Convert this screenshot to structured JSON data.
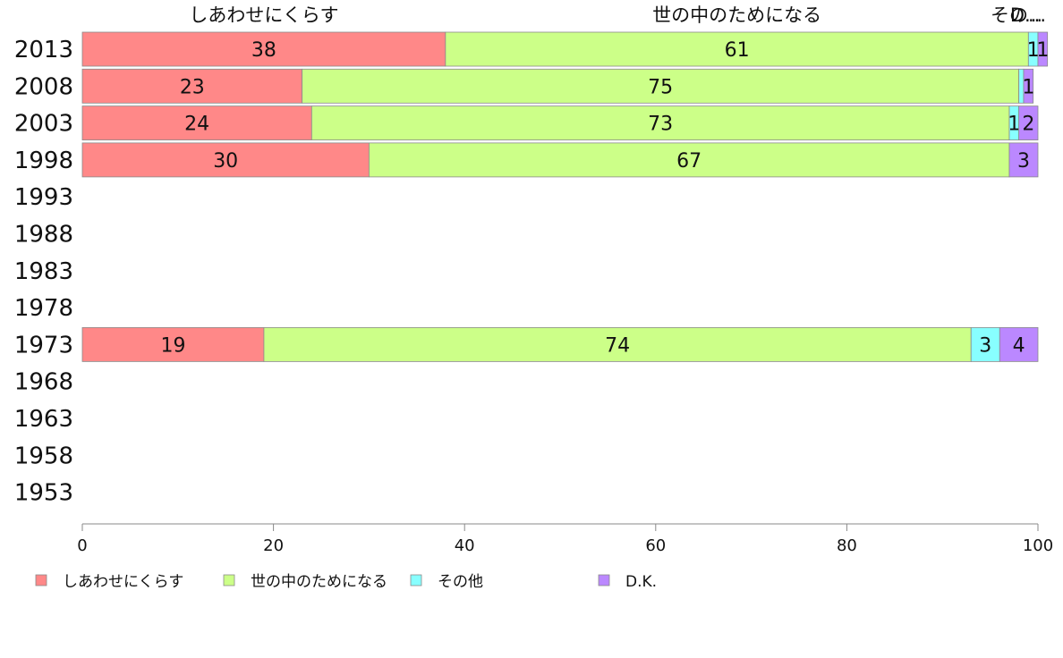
{
  "chart_data": {
    "type": "bar",
    "orientation": "horizontal",
    "stacked": true,
    "categories": [
      "2013",
      "2008",
      "2003",
      "1998",
      "1993",
      "1988",
      "1983",
      "1978",
      "1973",
      "1968",
      "1963",
      "1958",
      "1953"
    ],
    "series": [
      {
        "name": "しあわせにくらす",
        "color": "#ff8888",
        "values": [
          38,
          23,
          24,
          30,
          null,
          null,
          null,
          null,
          19,
          null,
          null,
          null,
          null
        ]
      },
      {
        "name": "世の中のためになる",
        "color": "#ccff88",
        "values": [
          61,
          75,
          73,
          67,
          null,
          null,
          null,
          null,
          74,
          null,
          null,
          null,
          null
        ]
      },
      {
        "name": "その他",
        "color": "#88ffff",
        "values": [
          1,
          0.5,
          1,
          0,
          null,
          null,
          null,
          null,
          3,
          null,
          null,
          null,
          null
        ]
      },
      {
        "name": "D.K.",
        "color": "#bb88ff",
        "values": [
          1,
          1,
          2,
          3,
          null,
          null,
          null,
          null,
          4,
          null,
          null,
          null,
          null
        ]
      }
    ],
    "segment_labels": [
      [
        "38",
        "61",
        "1",
        "1"
      ],
      [
        "23",
        "75",
        "",
        "1"
      ],
      [
        "24",
        "73",
        "1",
        "2"
      ],
      [
        "30",
        "67",
        "",
        "3"
      ],
      null,
      null,
      null,
      null,
      [
        "19",
        "74",
        "3",
        "4"
      ],
      null,
      null,
      null,
      null
    ],
    "column_headers": [
      "しあわせにくらす",
      "世の中のためになる",
      "その...",
      "D..."
    ],
    "xlim": [
      0,
      100
    ],
    "xticks": [
      "0",
      "20",
      "40",
      "60",
      "80",
      "100"
    ],
    "grid": false,
    "legend_position": "bottom"
  }
}
